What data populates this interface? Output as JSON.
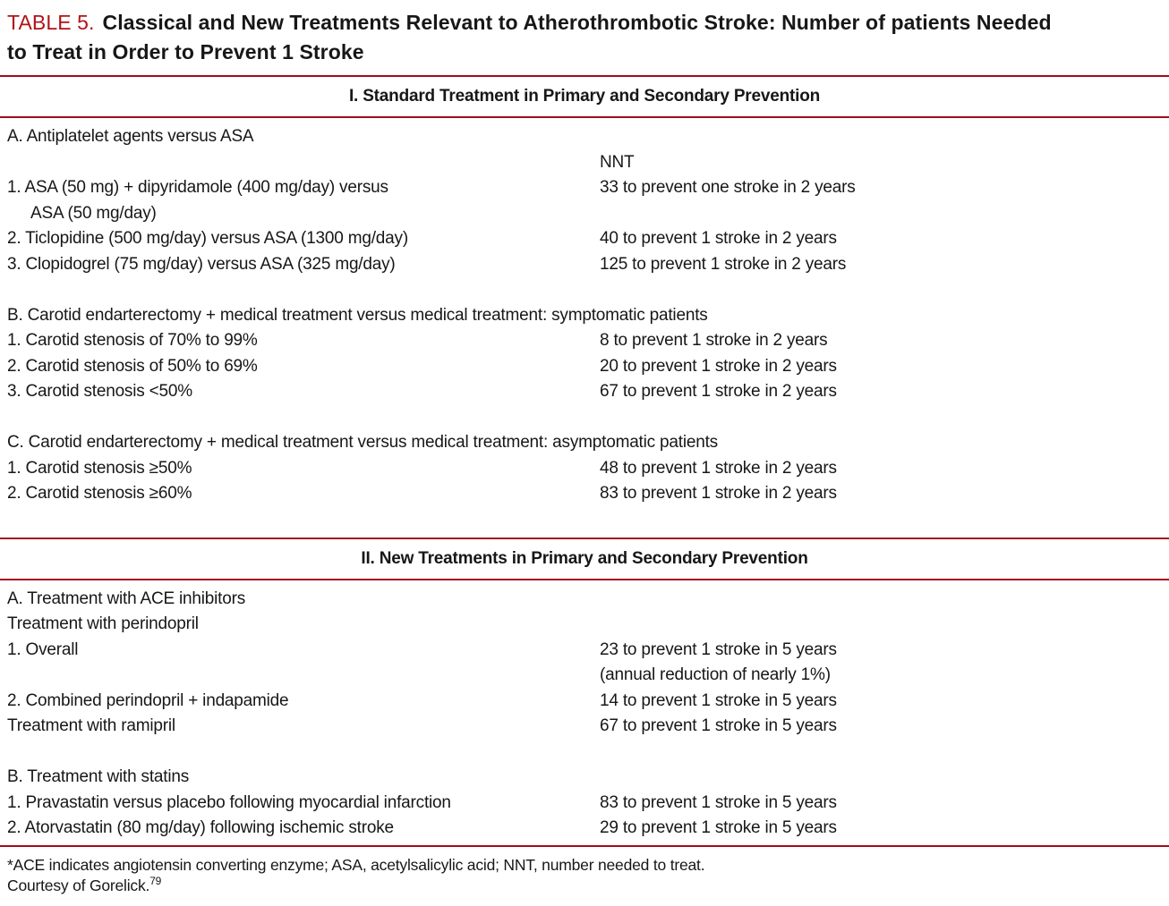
{
  "title": {
    "label": "TABLE 5.",
    "line1": "Classical and New Treatments Relevant to Atherothrombotic Stroke: Number of patients Needed",
    "line2": "to Treat in Order to Prevent 1 Stroke"
  },
  "colors": {
    "rule_red": "#a00d1e",
    "title_label_red": "#b11319",
    "text": "#171717"
  },
  "sections": [
    {
      "header": "I. Standard Treatment in Primary and Secondary Prevention",
      "rows": [
        {
          "left": "A. Antiplatelet agents versus ASA",
          "right": ""
        },
        {
          "left": "",
          "right": "NNT"
        },
        {
          "left": "1. ASA (50 mg) + dipyridamole (400 mg/day) versus",
          "right": "33 to prevent one stroke in 2 years"
        },
        {
          "left": "ASA (50 mg/day)",
          "right": ""
        },
        {
          "left": "2. Ticlopidine (500 mg/day) versus ASA (1300 mg/day)",
          "right": "40 to prevent 1 stroke in 2 years"
        },
        {
          "left": "3. Clopidogrel (75 mg/day) versus ASA (325 mg/day)",
          "right": "125 to prevent 1 stroke in 2 years"
        },
        {
          "left": "B. Carotid endarterectomy + medical treatment versus medical treatment: symptomatic patients",
          "right": ""
        },
        {
          "left": "1. Carotid stenosis of 70% to 99%",
          "right": "8 to prevent 1 stroke in 2 years"
        },
        {
          "left": "2. Carotid stenosis of 50% to 69%",
          "right": "20 to prevent 1 stroke in 2 years"
        },
        {
          "left": "3. Carotid stenosis <50%",
          "right": "67 to prevent 1 stroke in 2 years"
        },
        {
          "left": "C. Carotid endarterectomy + medical treatment versus medical treatment: asymptomatic patients",
          "right": ""
        },
        {
          "left": "1. Carotid stenosis ≥50%",
          "right": "48 to prevent 1 stroke in 2 years"
        },
        {
          "left": "2. Carotid stenosis ≥60%",
          "right": "83 to prevent 1 stroke in 2 years"
        }
      ]
    },
    {
      "header": "II. New Treatments in Primary and Secondary Prevention",
      "rows": [
        {
          "left": "A. Treatment with ACE inhibitors",
          "right": ""
        },
        {
          "left": "Treatment with perindopril",
          "right": ""
        },
        {
          "left": "1. Overall",
          "right": "23 to prevent 1 stroke in 5 years"
        },
        {
          "left": "",
          "right": "(annual reduction of nearly 1%)"
        },
        {
          "left": "2. Combined perindopril + indapamide",
          "right": "14 to prevent 1 stroke in 5 years"
        },
        {
          "left": "Treatment with ramipril",
          "right": "67 to prevent 1 stroke in 5 years"
        },
        {
          "left": "B. Treatment with statins",
          "right": ""
        },
        {
          "left": "1. Pravastatin versus placebo following myocardial infarction",
          "right": "83 to prevent 1 stroke in 5 years"
        },
        {
          "left": "2. Atorvastatin (80 mg/day) following ischemic stroke",
          "right": "29 to prevent 1 stroke in 5 years"
        }
      ]
    }
  ],
  "footnote": {
    "line1": "*ACE indicates angiotensin converting enzyme; ASA, acetylsalicylic acid; NNT, number needed to treat.",
    "line2": "Courtesy of Gorelick.",
    "ref": "79"
  }
}
